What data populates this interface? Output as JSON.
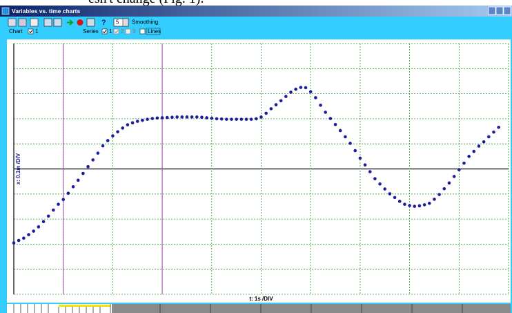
{
  "caption_fragment": "esn't change (Fig. 1).",
  "window": {
    "title": "Variables vs. time charts"
  },
  "toolbar": {
    "smoothing_value": "5",
    "smoothing_label": "Smoothing",
    "chart_label": "Chart",
    "chart_number": "1",
    "series_label": "Series",
    "series_numbers": [
      "1",
      "2",
      "3"
    ],
    "lines_label": "Lines"
  },
  "chart_data": {
    "type": "scatter",
    "x_label": "t: 1s /DIV",
    "y_label": "x: 0.1m /DIV",
    "color": "#1c1c9c",
    "xlim": [
      0,
      10
    ],
    "ylim": [
      -0.5,
      0.5
    ],
    "xticks": [
      0,
      1,
      2,
      3,
      4,
      5,
      6,
      7,
      8,
      9,
      10
    ],
    "yticks": [
      -0.5,
      -0.4,
      -0.3,
      -0.2,
      -0.1,
      0,
      0.1,
      0.2,
      0.3,
      0.4,
      0.5
    ],
    "grid": true,
    "grid_color": "#2e9e2e",
    "marker_lines_x": [
      1,
      3
    ],
    "marker_line_color": "#a040b0",
    "x": [
      0.0,
      0.1,
      0.2,
      0.3,
      0.4,
      0.5,
      0.6,
      0.7,
      0.8,
      0.9,
      1.0,
      1.1,
      1.2,
      1.3,
      1.4,
      1.5,
      1.6,
      1.7,
      1.8,
      1.9,
      2.0,
      2.1,
      2.2,
      2.3,
      2.4,
      2.5,
      2.6,
      2.7,
      2.8,
      2.9,
      3.0,
      3.1,
      3.2,
      3.3,
      3.4,
      3.5,
      3.6,
      3.7,
      3.8,
      3.9,
      4.0,
      4.1,
      4.2,
      4.3,
      4.4,
      4.5,
      4.6,
      4.7,
      4.8,
      4.9,
      5.0,
      5.1,
      5.2,
      5.3,
      5.4,
      5.5,
      5.6,
      5.7,
      5.8,
      5.9,
      6.0,
      6.1,
      6.2,
      6.3,
      6.4,
      6.5,
      6.6,
      6.7,
      6.8,
      6.9,
      7.0,
      7.1,
      7.2,
      7.3,
      7.4,
      7.5,
      7.6,
      7.7,
      7.8,
      7.9,
      8.0,
      8.1,
      8.2,
      8.3,
      8.4,
      8.5,
      8.6,
      8.7,
      8.8,
      8.9,
      9.0,
      9.1,
      9.2,
      9.3,
      9.4,
      9.5,
      9.6,
      9.7,
      9.8
    ],
    "values": [
      -0.295,
      -0.285,
      -0.276,
      -0.262,
      -0.248,
      -0.231,
      -0.21,
      -0.188,
      -0.164,
      -0.141,
      -0.122,
      -0.097,
      -0.071,
      -0.045,
      -0.018,
      0.009,
      0.036,
      0.063,
      0.092,
      0.113,
      0.132,
      0.148,
      0.163,
      0.176,
      0.184,
      0.19,
      0.194,
      0.198,
      0.201,
      0.203,
      0.204,
      0.205,
      0.206,
      0.207,
      0.207,
      0.207,
      0.207,
      0.207,
      0.206,
      0.204,
      0.202,
      0.2,
      0.199,
      0.198,
      0.198,
      0.198,
      0.198,
      0.198,
      0.198,
      0.2,
      0.207,
      0.222,
      0.24,
      0.256,
      0.272,
      0.289,
      0.306,
      0.318,
      0.325,
      0.324,
      0.308,
      0.284,
      0.254,
      0.226,
      0.201,
      0.177,
      0.153,
      0.128,
      0.102,
      0.073,
      0.043,
      0.016,
      -0.011,
      -0.039,
      -0.06,
      -0.08,
      -0.099,
      -0.114,
      -0.129,
      -0.141,
      -0.146,
      -0.149,
      -0.147,
      -0.143,
      -0.137,
      -0.121,
      -0.102,
      -0.079,
      -0.056,
      -0.03,
      -0.003,
      0.023,
      0.05,
      0.07,
      0.091,
      0.108,
      0.128,
      0.147,
      0.166
    ]
  }
}
